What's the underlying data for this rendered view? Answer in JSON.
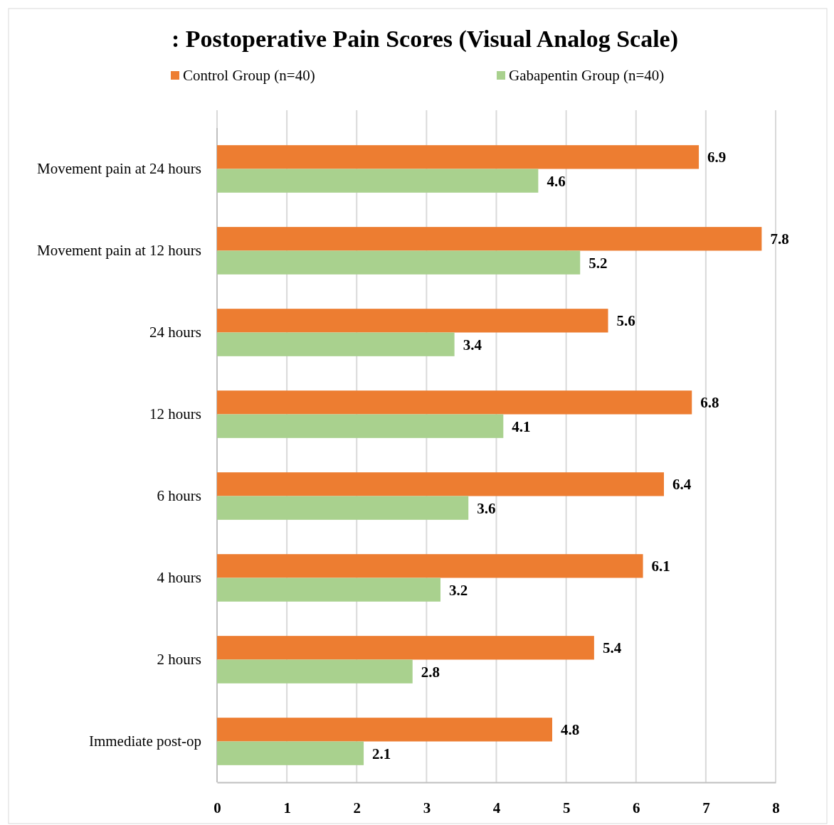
{
  "chart_data": {
    "type": "bar",
    "orientation": "horizontal",
    "title": ": Postoperative Pain Scores (Visual Analog Scale)",
    "categories": [
      "Movement pain at 24 hours",
      "Movement pain at 12 hours",
      "24 hours",
      "12 hours",
      "6 hours",
      "4 hours",
      "2 hours",
      "Immediate post-op"
    ],
    "series": [
      {
        "name": "Control Group (n=40)",
        "color": "#ed7d31",
        "values": [
          6.9,
          7.8,
          5.6,
          6.8,
          6.4,
          6.1,
          5.4,
          4.8
        ]
      },
      {
        "name": "Gabapentin Group (n=40)",
        "color": "#a9d18e",
        "values": [
          4.6,
          5.2,
          3.4,
          4.1,
          3.6,
          3.2,
          2.8,
          2.1
        ]
      }
    ],
    "xlim": [
      0,
      8
    ],
    "xticks": [
      0,
      1,
      2,
      3,
      4,
      5,
      6,
      7,
      8
    ],
    "grid": "x",
    "legend": "top",
    "data_labels": true
  }
}
